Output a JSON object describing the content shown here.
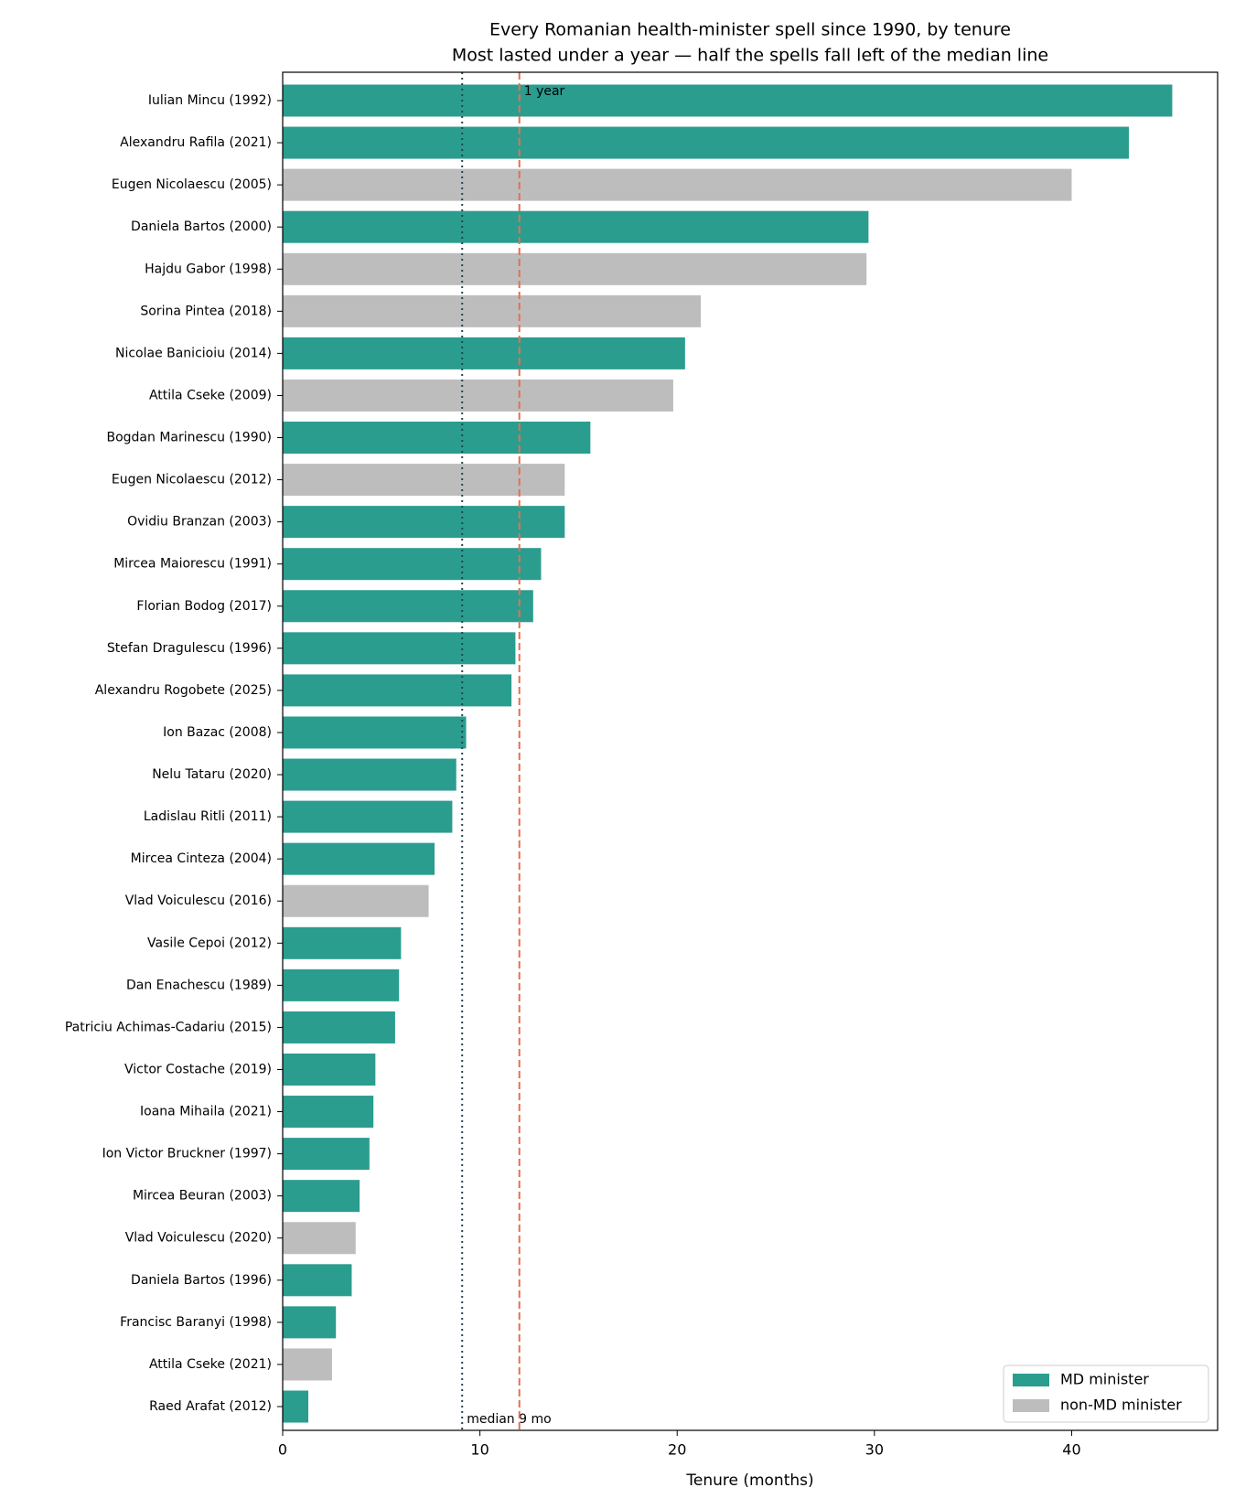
{
  "chart_data": {
    "type": "barh",
    "title": "Every Romanian health-minister spell since 1990, by tenure",
    "subtitle": "Most lasted under a year — half the spells fall left of the median line",
    "x_label": "Tenure (months)",
    "categories": [
      "Iulian Mincu (1992)",
      "Alexandru Rafila (2021)",
      "Eugen Nicolaescu (2005)",
      "Daniela Bartos (2000)",
      "Hajdu Gabor (1998)",
      "Sorina Pintea (2018)",
      "Nicolae Banicioiu (2014)",
      "Attila Cseke (2009)",
      "Bogdan Marinescu (1990)",
      "Eugen Nicolaescu (2012)",
      "Ovidiu Branzan (2003)",
      "Mircea Maiorescu (1991)",
      "Florian Bodog (2017)",
      "Stefan Dragulescu (1996)",
      "Alexandru Rogobete (2025)",
      "Ion Bazac (2008)",
      "Nelu Tataru (2020)",
      "Ladislau Ritli (2011)",
      "Mircea Cinteza (2004)",
      "Vlad Voiculescu (2016)",
      "Vasile Cepoi (2012)",
      "Dan Enachescu (1989)",
      "Patriciu Achimas-Cadariu (2015)",
      "Victor Costache (2019)",
      "Ioana Mihaila (2021)",
      "Ion Victor Bruckner (1997)",
      "Mircea Beuran (2003)",
      "Vlad Voiculescu (2020)",
      "Daniela Bartos (1996)",
      "Francisc Baranyi (1998)",
      "Attila Cseke (2021)",
      "Raed Arafat (2012)"
    ],
    "series": [
      {
        "name": "MD minister",
        "color": "#2a9d8f",
        "values": [
          45.1,
          42.9,
          null,
          29.7,
          null,
          null,
          20.4,
          null,
          15.6,
          null,
          14.3,
          13.1,
          12.7,
          11.8,
          11.6,
          9.3,
          8.8,
          8.6,
          7.7,
          null,
          6.0,
          5.9,
          5.7,
          4.7,
          4.6,
          4.4,
          3.9,
          null,
          3.5,
          2.7,
          null,
          1.3
        ]
      },
      {
        "name": "non-MD minister",
        "color": "#bdbdbd",
        "values": [
          null,
          null,
          40.0,
          null,
          29.6,
          21.2,
          null,
          19.8,
          null,
          14.3,
          null,
          null,
          null,
          null,
          null,
          null,
          null,
          null,
          null,
          7.4,
          null,
          null,
          null,
          null,
          null,
          null,
          null,
          3.7,
          null,
          null,
          2.5,
          null
        ]
      }
    ],
    "reference_lines": [
      {
        "value": 9.1,
        "label": "median 9 mo",
        "color": "#264653",
        "style": "dotted"
      },
      {
        "value": 12,
        "label": "1 year",
        "color": "#e76f51",
        "style": "dashed"
      }
    ],
    "xlim": [
      0,
      47.4
    ],
    "xticks": [
      0,
      10,
      20,
      30,
      40
    ],
    "legend": "lower right"
  }
}
